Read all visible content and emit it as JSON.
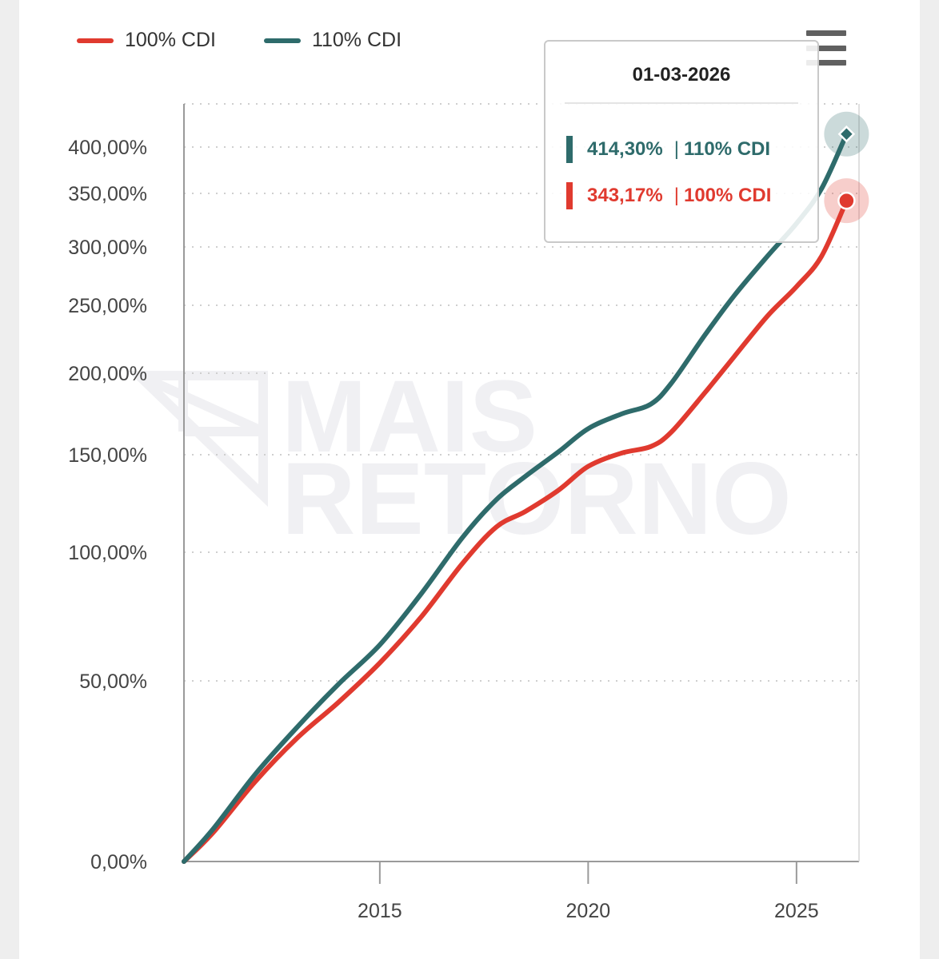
{
  "colors": {
    "cdi100": "#e03a2f",
    "cdi110": "#2e6b6b",
    "grid": "#cfcfcf",
    "axis": "#9a9a9a",
    "watermark": "#f0f0f3"
  },
  "legend": {
    "items": [
      {
        "label": "100% CDI"
      },
      {
        "label": "110% CDI"
      }
    ]
  },
  "menu": {
    "icon": "hamburger-menu-icon"
  },
  "watermark": {
    "line1": "MAIS",
    "line2": "RETORNO"
  },
  "tooltip": {
    "date": "01-03-2026",
    "rows": [
      {
        "value": "414,30%",
        "name": "110% CDI"
      },
      {
        "value": "343,17%",
        "name": "100% CDI"
      }
    ]
  },
  "chart_data": {
    "type": "line",
    "title": "",
    "xlabel": "",
    "ylabel": "",
    "xlim": [
      2010.3,
      2026.5
    ],
    "y_ticks": [
      {
        "value": 0,
        "label": "0,00%"
      },
      {
        "value": 50,
        "label": "50,00%"
      },
      {
        "value": 100,
        "label": "100,00%"
      },
      {
        "value": 150,
        "label": "150,00%"
      },
      {
        "value": 200,
        "label": "200,00%"
      },
      {
        "value": 250,
        "label": "250,00%"
      },
      {
        "value": 300,
        "label": "300,00%"
      },
      {
        "value": 350,
        "label": "350,00%"
      },
      {
        "value": 400,
        "label": "400,00%"
      }
    ],
    "x_ticks": [
      {
        "value": 2015,
        "label": "2015"
      },
      {
        "value": 2020,
        "label": "2020"
      },
      {
        "value": 2025,
        "label": "2025"
      }
    ],
    "series": [
      {
        "name": "100% CDI",
        "x": [
          2010.3,
          2011,
          2012,
          2013,
          2014,
          2015,
          2016,
          2017,
          2017.8,
          2018.5,
          2019.3,
          2020,
          2020.8,
          2021.5,
          2022,
          2022.8,
          2023.5,
          2024.3,
          2025,
          2025.6,
          2026.2
        ],
        "y": [
          0,
          8,
          22,
          34,
          44,
          57,
          75,
          96,
          113,
          121,
          132,
          144,
          151,
          155,
          164,
          188,
          212,
          242,
          266,
          292,
          343.17
        ]
      },
      {
        "name": "110% CDI",
        "x": [
          2010.3,
          2011,
          2012,
          2013,
          2014,
          2015,
          2016,
          2017,
          2017.8,
          2018.5,
          2019.3,
          2020,
          2020.8,
          2021.5,
          2022,
          2022.8,
          2023.5,
          2024.3,
          2025,
          2025.6,
          2026.2
        ],
        "y": [
          0,
          9,
          24,
          37,
          49,
          64,
          84,
          108,
          127,
          139,
          152,
          166,
          175,
          181,
          194,
          228,
          258,
          292,
          322,
          355,
          414.3
        ]
      }
    ]
  }
}
